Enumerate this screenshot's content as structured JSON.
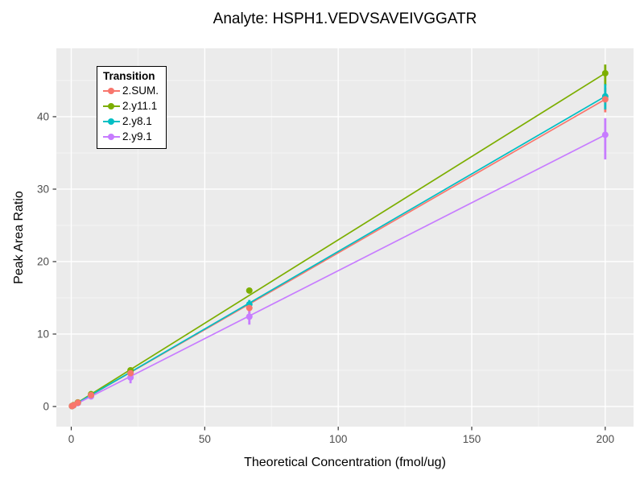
{
  "chart_data": {
    "type": "line",
    "title": "Analyte: HSPH1.VEDVSAVEIVGGATR",
    "xlabel": "Theoretical Concentration (fmol/ug)",
    "ylabel": "Peak Area Ratio",
    "legend_title": "Transition",
    "legend_position": "top-left-inside",
    "grid": true,
    "panel_bg": "#EBEBEB",
    "grid_major_color": "#FFFFFF",
    "grid_minor_color": "#F4F4F4",
    "tick_label_color": "#4D4D4D",
    "tick_mark_color": "#333333",
    "xlim": [
      -5.58,
      210.6
    ],
    "ylim": [
      -2.78,
      49.44
    ],
    "x_ticks": [
      0,
      50,
      100,
      150,
      200
    ],
    "x_minor_ticks": [
      25,
      75,
      125,
      175
    ],
    "y_ticks": [
      0,
      10,
      20,
      30,
      40
    ],
    "y_minor_ticks": [
      5,
      15,
      25,
      35,
      45
    ],
    "x": [
      0.27,
      0.82,
      2.47,
      7.41,
      22.2,
      66.7,
      200
    ],
    "series": [
      {
        "name": "2.SUM.",
        "color": "#F8766D",
        "y": [
          0.06,
          0.17,
          0.52,
          1.57,
          4.6,
          13.6,
          42.4
        ],
        "err_lo": [
          null,
          null,
          null,
          null,
          null,
          12.9,
          40.6
        ],
        "err_hi": [
          null,
          null,
          null,
          null,
          null,
          14.2,
          44.0
        ]
      },
      {
        "name": "2.y11.1",
        "color": "#7CAE00",
        "y": [
          0.06,
          0.19,
          0.57,
          1.7,
          5.0,
          16.0,
          46.0
        ],
        "err_lo": [
          null,
          null,
          null,
          null,
          null,
          null,
          44.3
        ],
        "err_hi": [
          null,
          null,
          null,
          null,
          null,
          null,
          47.2
        ]
      },
      {
        "name": "2.y8.1",
        "color": "#00BFC4",
        "y": [
          0.06,
          0.18,
          0.53,
          1.59,
          4.75,
          14.1,
          42.8
        ],
        "err_lo": [
          null,
          null,
          null,
          null,
          null,
          13.5,
          41.0
        ],
        "err_hi": [
          null,
          null,
          null,
          null,
          null,
          14.7,
          44.5
        ]
      },
      {
        "name": "2.y9.1",
        "color": "#C77CFF",
        "y": [
          0.05,
          0.15,
          0.46,
          1.39,
          4.0,
          12.4,
          37.5
        ],
        "err_lo": [
          null,
          null,
          null,
          null,
          3.2,
          11.3,
          34.1
        ],
        "err_hi": [
          null,
          null,
          null,
          null,
          4.8,
          13.3,
          39.8
        ]
      }
    ]
  }
}
